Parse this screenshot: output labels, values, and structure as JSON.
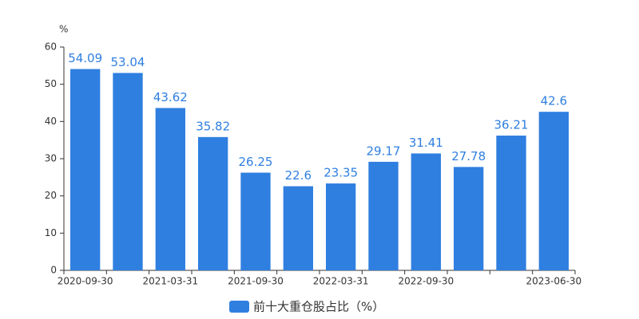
{
  "chart_data": {
    "type": "bar",
    "unit": "%",
    "categories": [
      "2020-09-30",
      null,
      "2021-03-31",
      null,
      "2021-09-30",
      null,
      "2022-03-31",
      null,
      "2022-09-30",
      null,
      null,
      "2023-06-30"
    ],
    "series": [
      {
        "name": "前十大重仓股占比（%）",
        "color": "#2f7fe0",
        "values": [
          54.09,
          53.04,
          43.62,
          35.82,
          26.25,
          22.6,
          23.35,
          29.17,
          31.41,
          27.78,
          36.21,
          42.6
        ]
      }
    ],
    "ylim": [
      0,
      60
    ],
    "yticks": [
      0,
      10,
      20,
      30,
      40,
      50,
      60
    ],
    "grid": false,
    "legend": "bottom"
  }
}
